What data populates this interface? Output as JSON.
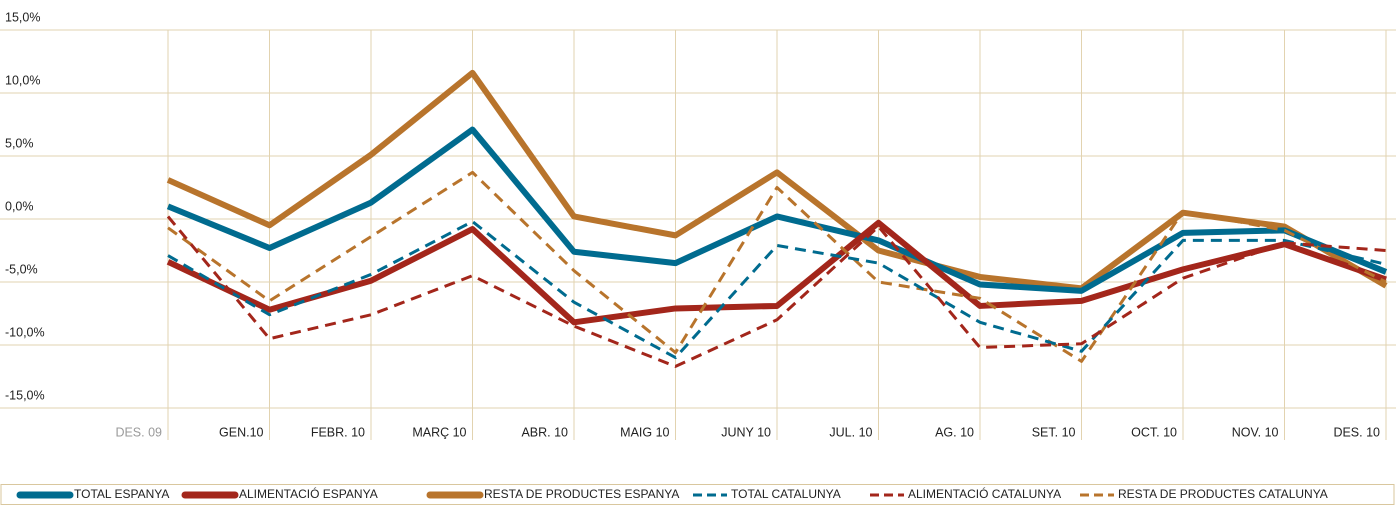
{
  "chart_data": {
    "type": "line",
    "categories": [
      "DES. 09",
      "GEN.10",
      "FEBR. 10",
      "MARÇ 10",
      "ABR. 10",
      "MAIG 10",
      "JUNY 10",
      "JUL. 10",
      "AG. 10",
      "SET. 10",
      "OCT. 10",
      "NOV. 10",
      "DES. 10"
    ],
    "ylim": [
      -15,
      15
    ],
    "yticks": [
      {
        "value": 15,
        "label": "15,0%"
      },
      {
        "value": 10,
        "label": "10,0%"
      },
      {
        "value": 5,
        "label": "5,0%"
      },
      {
        "value": 0,
        "label": "0,0%"
      },
      {
        "value": -5,
        "label": "-5,0%"
      },
      {
        "value": -10,
        "label": "-10,0%"
      },
      {
        "value": -15,
        "label": "-15,0%"
      }
    ],
    "grid": true,
    "legend": "bottom",
    "series": [
      {
        "name": "TOTAL ESPANYA",
        "color": "#006b8f",
        "dashed": false,
        "values": [
          1.0,
          -2.3,
          1.3,
          7.1,
          -2.6,
          -3.5,
          0.2,
          -1.7,
          -5.2,
          -5.7,
          -1.1,
          -0.9,
          -4.2
        ]
      },
      {
        "name": "ALIMENTACIÓ ESPANYA",
        "color": "#a3261b",
        "dashed": false,
        "values": [
          -3.4,
          -7.2,
          -4.9,
          -0.8,
          -8.2,
          -7.1,
          -6.9,
          -0.3,
          -6.9,
          -6.5,
          -4.0,
          -2.0,
          -4.8
        ]
      },
      {
        "name": "RESTA DE PRODUCTES ESPANYA",
        "color": "#b8742c",
        "dashed": false,
        "values": [
          3.1,
          -0.5,
          5.1,
          11.6,
          0.2,
          -1.3,
          3.7,
          -2.5,
          -4.6,
          -5.5,
          0.5,
          -0.6,
          -5.3
        ]
      },
      {
        "name": "TOTAL CATALUNYA",
        "color": "#006b8f",
        "dashed": true,
        "values": [
          -2.9,
          -7.6,
          -4.4,
          -0.2,
          -6.6,
          -11.0,
          -2.1,
          -3.5,
          -8.2,
          -10.5,
          -1.7,
          -1.7,
          -3.6
        ]
      },
      {
        "name": "ALIMENTACIÓ CATALUNYA",
        "color": "#a3261b",
        "dashed": true,
        "values": [
          0.2,
          -9.5,
          -7.6,
          -4.5,
          -8.5,
          -11.7,
          -8.0,
          -0.6,
          -10.2,
          -9.9,
          -4.7,
          -1.9,
          -2.5
        ]
      },
      {
        "name": "RESTA DE PRODUCTES CATALUNYA",
        "color": "#b8742c",
        "dashed": true,
        "values": [
          -0.7,
          -6.5,
          -1.4,
          3.7,
          -4.1,
          -10.6,
          2.5,
          -5.0,
          -6.3,
          -11.3,
          0.6,
          -0.9,
          -5.0
        ]
      }
    ]
  }
}
